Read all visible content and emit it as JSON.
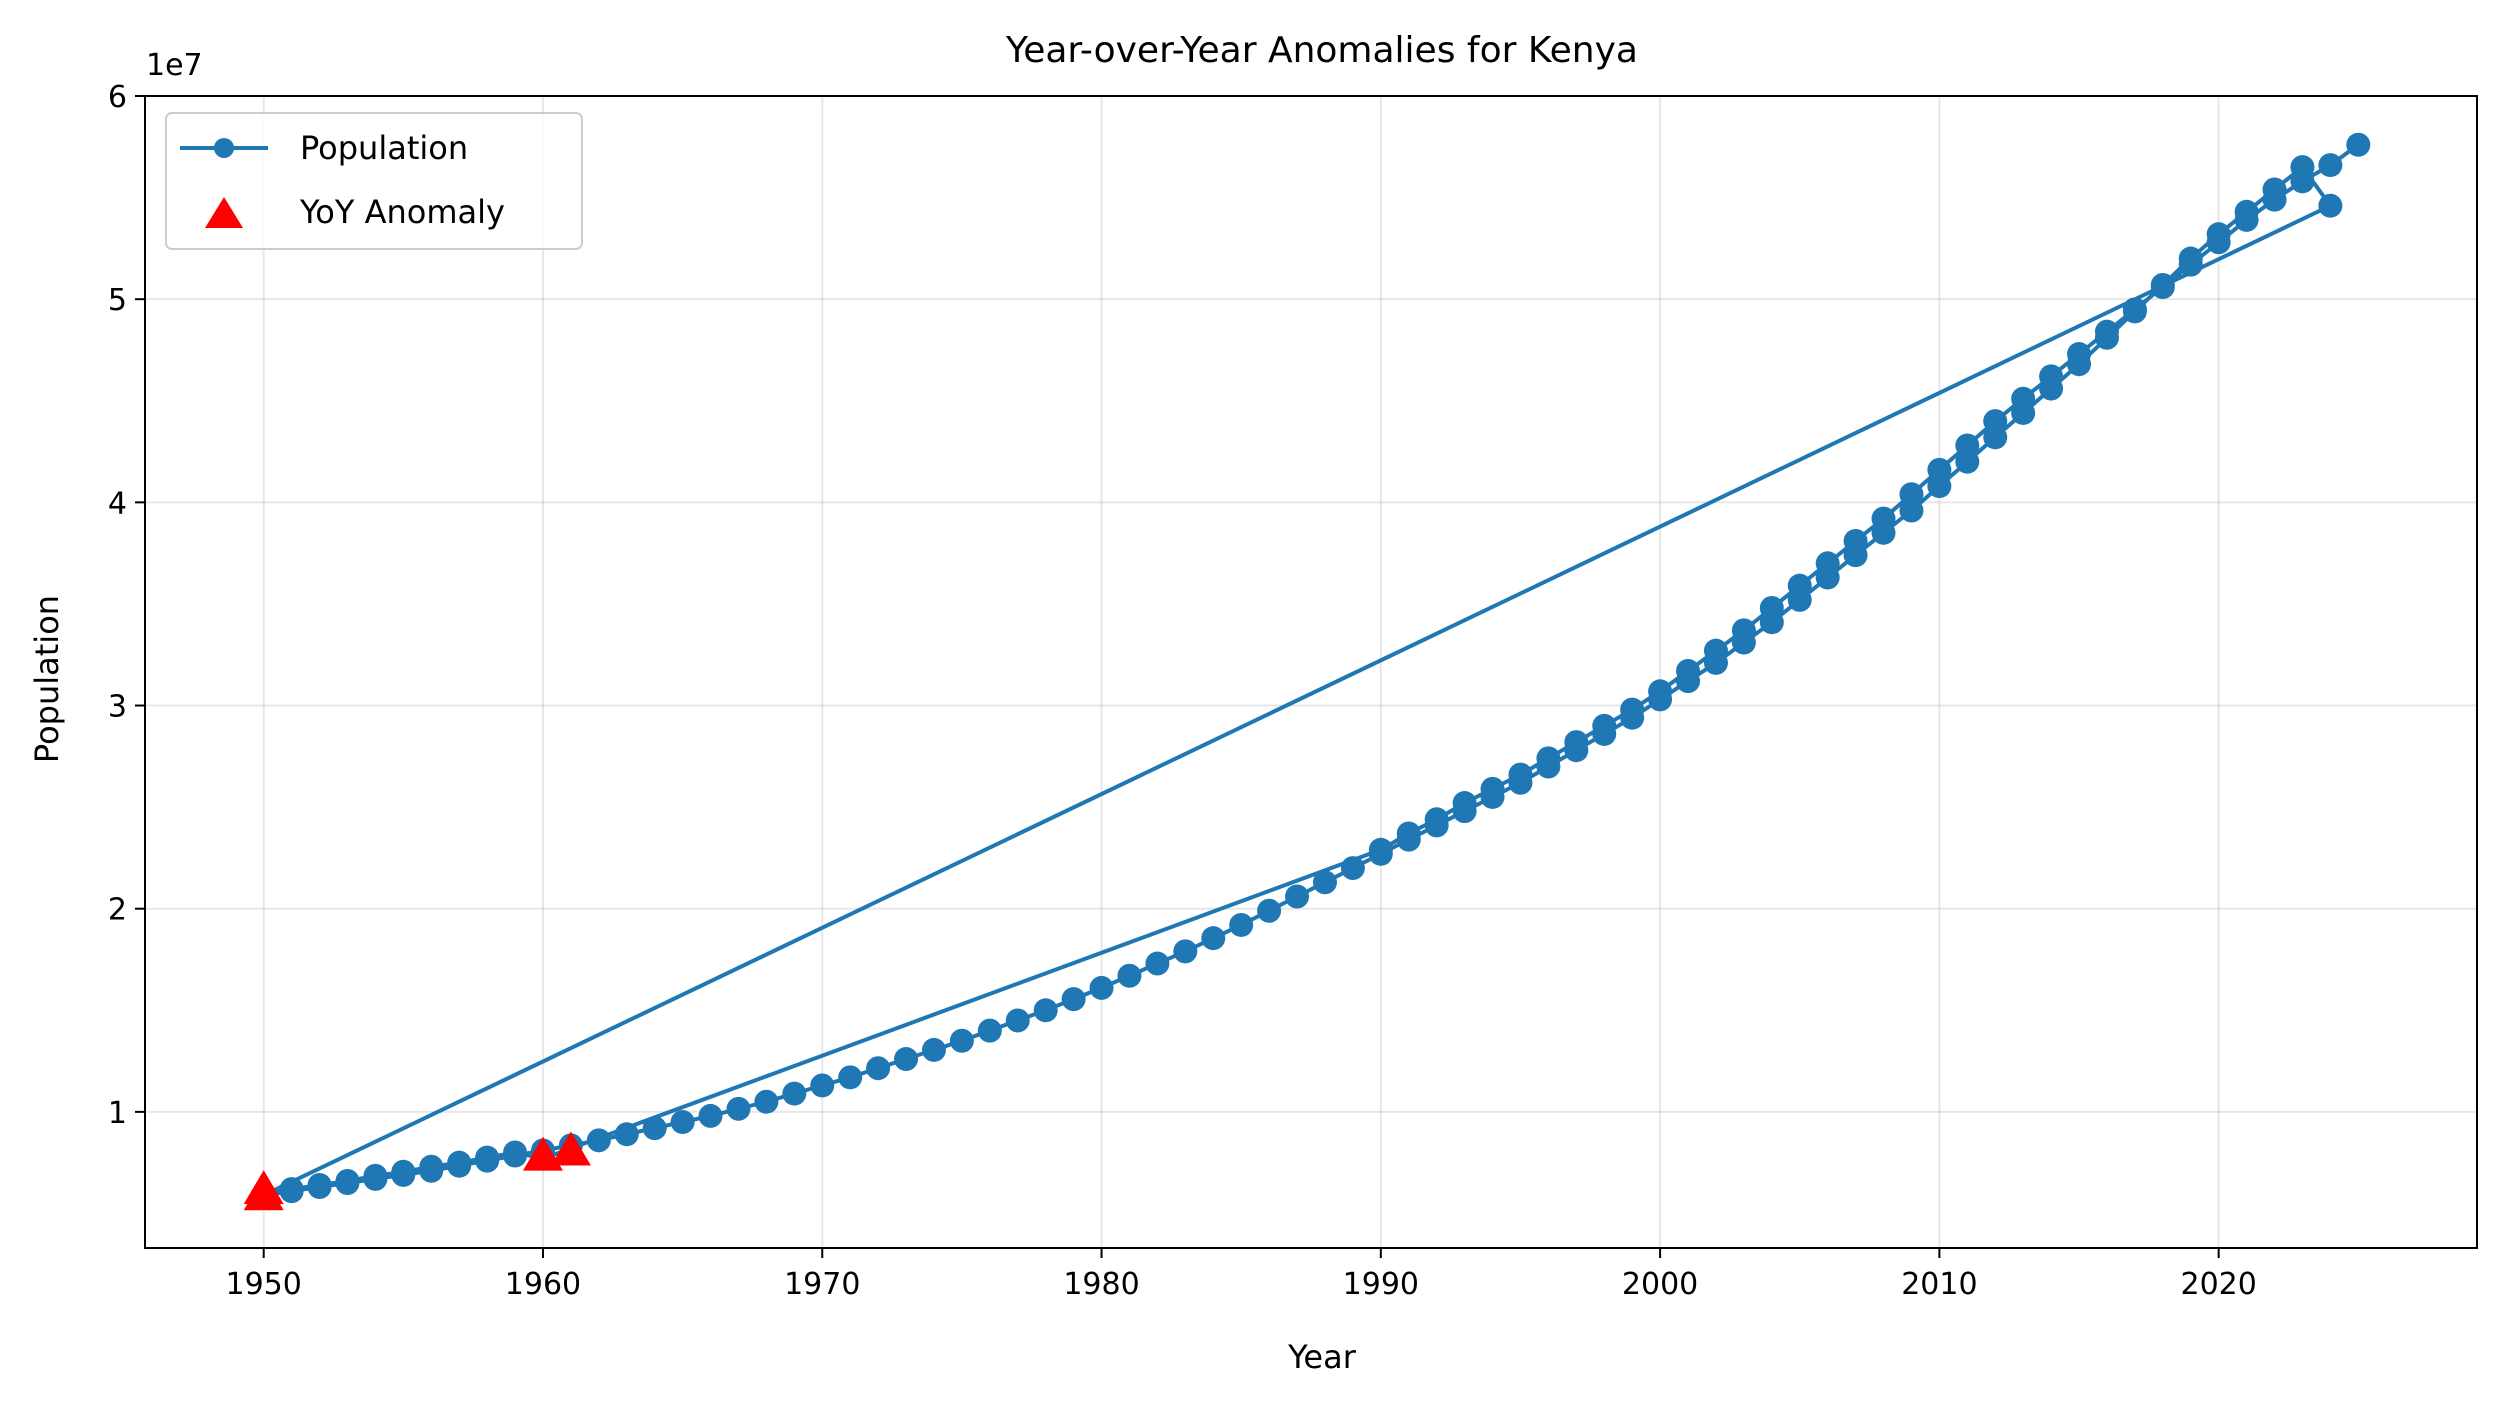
{
  "chart_data": {
    "type": "line",
    "title": "Year-over-Year Anomalies for Kenya",
    "xlabel": "Year",
    "ylabel": "Population",
    "offset_text": "1e7",
    "xlim": [
      1945.75,
      2029.25
    ],
    "ylim": [
      3.3,
      60.0
    ],
    "y_units": "1e7",
    "grid": true,
    "legend_position": "upper-left",
    "xticks": [
      1950,
      1960,
      1970,
      1980,
      1990,
      2000,
      2010,
      2020
    ],
    "xtick_labels": [
      "1950",
      "1960",
      "1970",
      "1980",
      "1990",
      "2000",
      "2010",
      "2020"
    ],
    "yticks": [
      10,
      20,
      30,
      40,
      50,
      60
    ],
    "ytick_labels": [
      "1",
      "2",
      "3",
      "4",
      "5",
      "6"
    ],
    "colors": {
      "population": "#1f77b4",
      "anomaly": "#ff0000"
    },
    "series": [
      {
        "name": "Population",
        "marker": "circle",
        "x": [
          1950,
          1951,
          1952,
          1953,
          1954,
          1955,
          1956,
          1957,
          1958,
          1959,
          1960,
          1961,
          1962,
          1963,
          1964,
          1965,
          1966,
          1967,
          1968,
          1969,
          1970,
          1971,
          1972,
          1973,
          1974,
          1975,
          1976,
          1977,
          1978,
          1979,
          1980,
          1981,
          1982,
          1983,
          1984,
          1985,
          1986,
          1987,
          1988,
          1989,
          1990,
          1991,
          1992,
          1993,
          1994,
          1995,
          1996,
          1997,
          1998,
          1999,
          2000,
          2001,
          2002,
          2003,
          2004,
          2005,
          2006,
          2007,
          2008,
          2009,
          2010,
          2011,
          2012,
          2013,
          2014,
          2015,
          2016,
          2017,
          2018,
          2019,
          2020,
          2021,
          2022,
          2023,
          2024,
          1950,
          1951,
          1952,
          1953,
          1954,
          1955,
          1956,
          1957,
          1958,
          1959,
          1960,
          1990,
          1991,
          1992,
          1993,
          1994,
          1995,
          1996,
          1997,
          1998,
          1999,
          2000,
          2001,
          2002,
          2003,
          2004,
          2005,
          2006,
          2007,
          2008,
          2009,
          2010,
          2011,
          2012,
          2013,
          2014,
          2015,
          2016,
          2017,
          2018,
          2019,
          2020,
          2021,
          2022,
          2023,
          2024,
          2025
        ],
        "y": [
          5.9,
          6.1,
          6.3,
          6.5,
          6.7,
          6.9,
          7.1,
          7.35,
          7.6,
          7.85,
          8.1,
          8.35,
          8.6,
          8.9,
          9.2,
          9.5,
          9.8,
          10.15,
          10.5,
          10.9,
          11.3,
          11.7,
          12.15,
          12.6,
          13.05,
          13.5,
          14.0,
          14.5,
          15.0,
          15.55,
          16.1,
          16.7,
          17.3,
          17.9,
          18.55,
          19.2,
          19.9,
          20.6,
          21.3,
          22.0,
          22.7,
          23.4,
          24.1,
          24.8,
          25.5,
          26.2,
          27.0,
          27.8,
          28.6,
          29.4,
          30.3,
          31.2,
          32.1,
          33.1,
          34.1,
          35.2,
          36.3,
          37.4,
          38.5,
          39.6,
          40.8,
          42.0,
          43.2,
          44.4,
          45.6,
          46.8,
          48.1,
          49.4,
          50.7,
          52.0,
          53.2,
          54.3,
          55.4,
          56.5,
          54.6,
          5.9,
          6.2,
          6.4,
          6.6,
          6.85,
          7.05,
          7.3,
          7.5,
          7.75,
          8.0,
          7.7,
          22.9,
          23.7,
          24.4,
          25.2,
          25.9,
          26.6,
          27.4,
          28.2,
          29.0,
          29.8,
          30.7,
          31.7,
          32.7,
          33.7,
          34.8,
          35.9,
          37.0,
          38.1,
          39.2,
          40.4,
          41.6,
          42.8,
          44.0,
          45.1,
          46.2,
          47.3,
          48.4,
          49.5,
          50.6,
          51.7,
          52.8,
          53.9,
          54.9,
          55.8,
          56.6,
          57.6
        ]
      },
      {
        "name": "YoY Anomaly",
        "marker": "triangle",
        "x": [
          1950,
          1950,
          1960,
          1961
        ],
        "y": [
          5.85,
          6.15,
          7.8,
          8.05
        ]
      }
    ]
  }
}
